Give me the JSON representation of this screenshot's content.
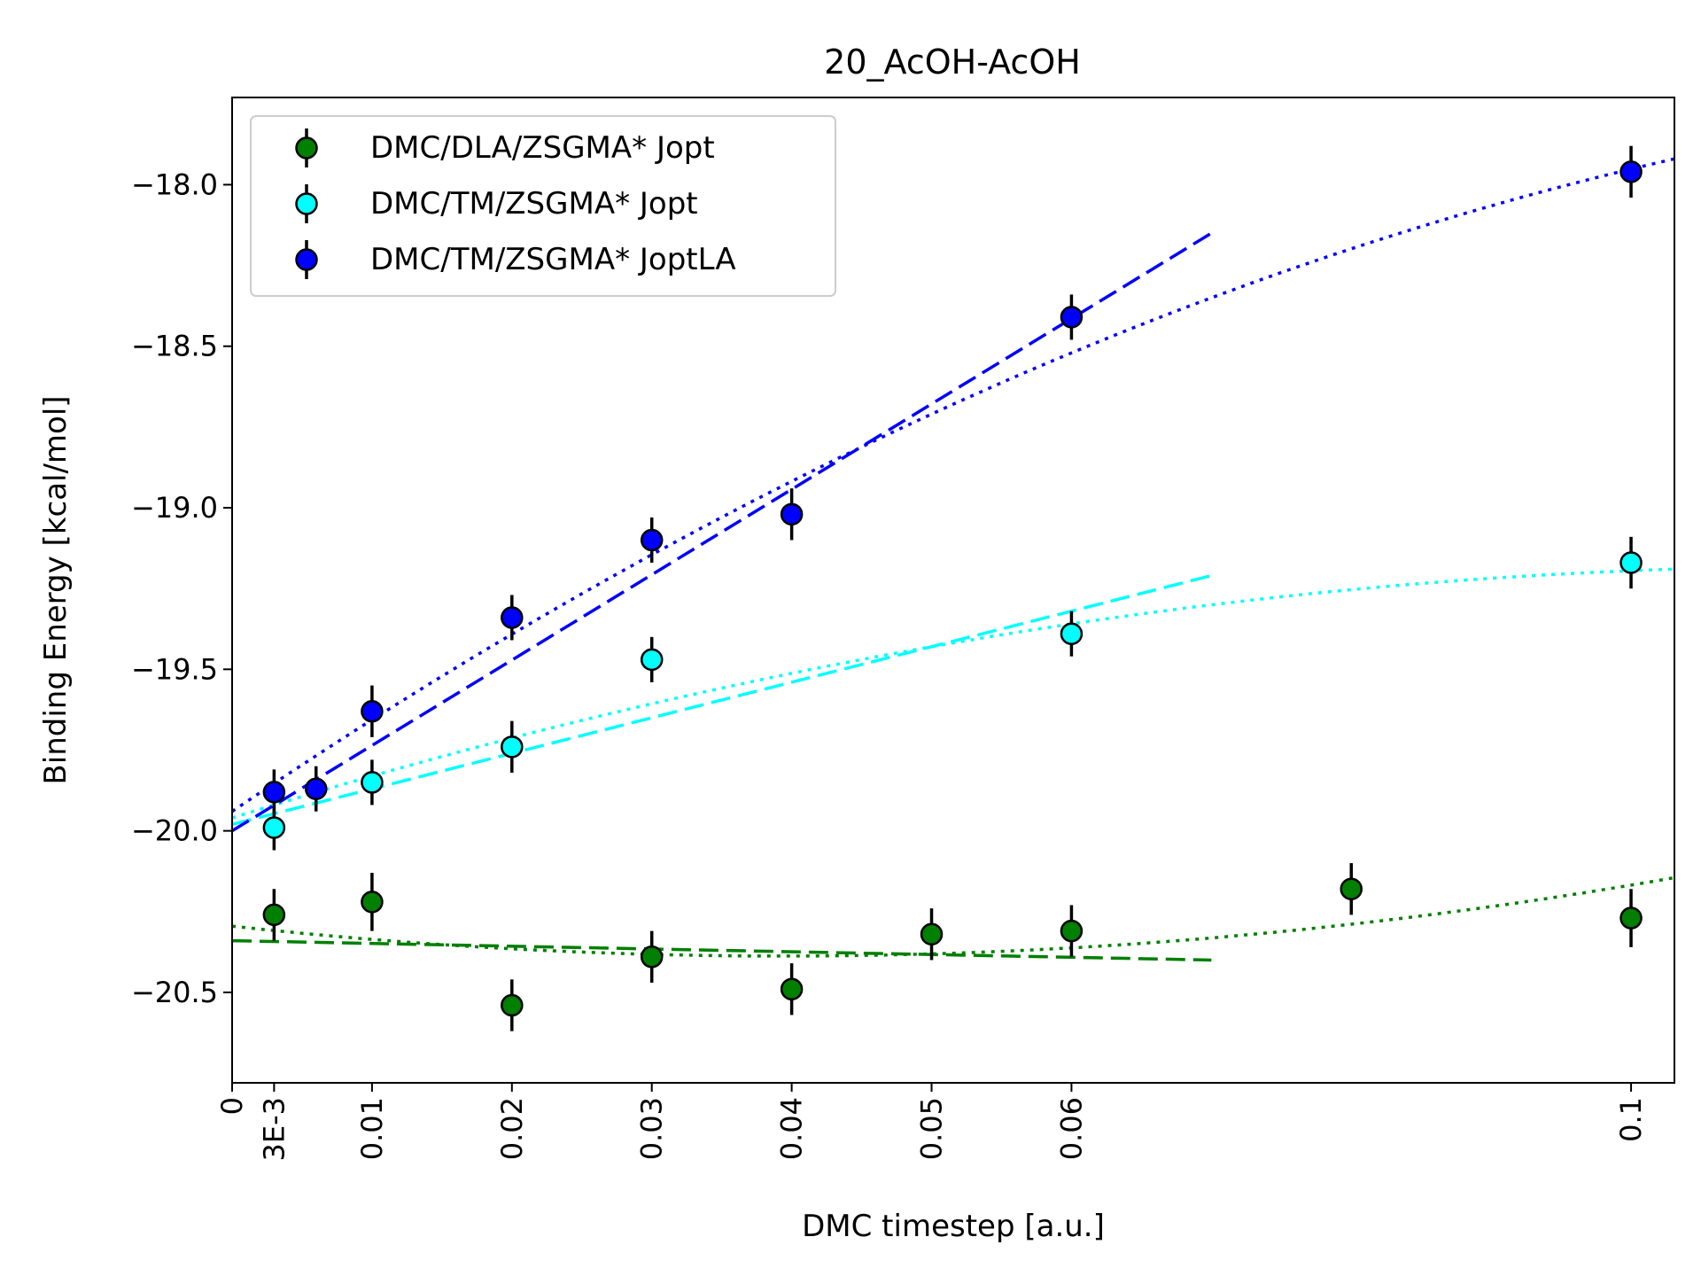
{
  "chart_data": {
    "type": "scatter",
    "title": "20_AcOH-AcOH",
    "xlabel": "DMC timestep [a.u.]",
    "ylabel": "Binding Energy [kcal/mol]",
    "xlim": [
      0,
      0.1031
    ],
    "ylim": [
      -20.78,
      -17.73
    ],
    "xticks": [
      {
        "value": 0,
        "label": "0"
      },
      {
        "value": 0.003,
        "label": "3E-3"
      },
      {
        "value": 0.01,
        "label": "0.01"
      },
      {
        "value": 0.02,
        "label": "0.02"
      },
      {
        "value": 0.03,
        "label": "0.03"
      },
      {
        "value": 0.04,
        "label": "0.04"
      },
      {
        "value": 0.05,
        "label": "0.05"
      },
      {
        "value": 0.06,
        "label": "0.06"
      },
      {
        "value": 0.1,
        "label": "0.1"
      }
    ],
    "yticks": [
      {
        "value": -18.0,
        "label": "−18.0"
      },
      {
        "value": -18.5,
        "label": "−18.5"
      },
      {
        "value": -19.0,
        "label": "−19.0"
      },
      {
        "value": -19.5,
        "label": "−19.5"
      },
      {
        "value": -20.0,
        "label": "−20.0"
      },
      {
        "value": -20.5,
        "label": "−20.5"
      }
    ],
    "legend_position": "top-left",
    "series": [
      {
        "name": "DMC/DLA/ZSGMA* Jopt",
        "color": "#007f00",
        "points": [
          {
            "x": 0.003,
            "y": -20.26,
            "err": 0.08
          },
          {
            "x": 0.01,
            "y": -20.22,
            "err": 0.09
          },
          {
            "x": 0.02,
            "y": -20.54,
            "err": 0.08
          },
          {
            "x": 0.03,
            "y": -20.39,
            "err": 0.08
          },
          {
            "x": 0.04,
            "y": -20.49,
            "err": 0.08
          },
          {
            "x": 0.05,
            "y": -20.32,
            "err": 0.08
          },
          {
            "x": 0.06,
            "y": -20.31,
            "err": 0.08
          },
          {
            "x": 0.08,
            "y": -20.18,
            "err": 0.08
          },
          {
            "x": 0.1,
            "y": -20.27,
            "err": 0.09
          }
        ],
        "linear_fit": {
          "x0": 0,
          "y0": -20.34,
          "x1": 0.07,
          "y1": -20.4
        },
        "quadratic_fit": {
          "x0": 0,
          "y0": -20.295,
          "xm": 0.046,
          "ym": -20.385,
          "x1": 0.1031,
          "y1": -20.145
        }
      },
      {
        "name": "DMC/TM/ZSGMA* Jopt",
        "color": "#00ffff",
        "points": [
          {
            "x": 0.003,
            "y": -19.99,
            "err": 0.07
          },
          {
            "x": 0.01,
            "y": -19.85,
            "err": 0.07
          },
          {
            "x": 0.02,
            "y": -19.74,
            "err": 0.08
          },
          {
            "x": 0.03,
            "y": -19.47,
            "err": 0.07
          },
          {
            "x": 0.06,
            "y": -19.39,
            "err": 0.07
          },
          {
            "x": 0.1,
            "y": -19.17,
            "err": 0.08
          }
        ],
        "linear_fit": {
          "x0": 0,
          "y0": -19.98,
          "x1": 0.07,
          "y1": -19.21
        },
        "quadratic_fit": {
          "x0": 0,
          "y0": -19.96,
          "xm": 0.05,
          "ym": -19.43,
          "x1": 0.1031,
          "y1": -19.19
        }
      },
      {
        "name": "DMC/TM/ZSGMA* JoptLA",
        "color": "#0000ff",
        "points": [
          {
            "x": 0.003,
            "y": -19.88,
            "err": 0.07
          },
          {
            "x": 0.006,
            "y": -19.87,
            "err": 0.07
          },
          {
            "x": 0.01,
            "y": -19.63,
            "err": 0.08
          },
          {
            "x": 0.02,
            "y": -19.34,
            "err": 0.07
          },
          {
            "x": 0.03,
            "y": -19.1,
            "err": 0.07
          },
          {
            "x": 0.04,
            "y": -19.02,
            "err": 0.08
          },
          {
            "x": 0.06,
            "y": -18.41,
            "err": 0.07
          },
          {
            "x": 0.1,
            "y": -17.96,
            "err": 0.08
          }
        ],
        "linear_fit": {
          "x0": 0,
          "y0": -20.0,
          "x1": 0.07,
          "y1": -18.15
        },
        "quadratic_fit": {
          "x0": 0,
          "y0": -19.94,
          "xm": 0.05,
          "ym": -18.71,
          "x1": 0.1031,
          "y1": -17.92
        }
      }
    ]
  }
}
